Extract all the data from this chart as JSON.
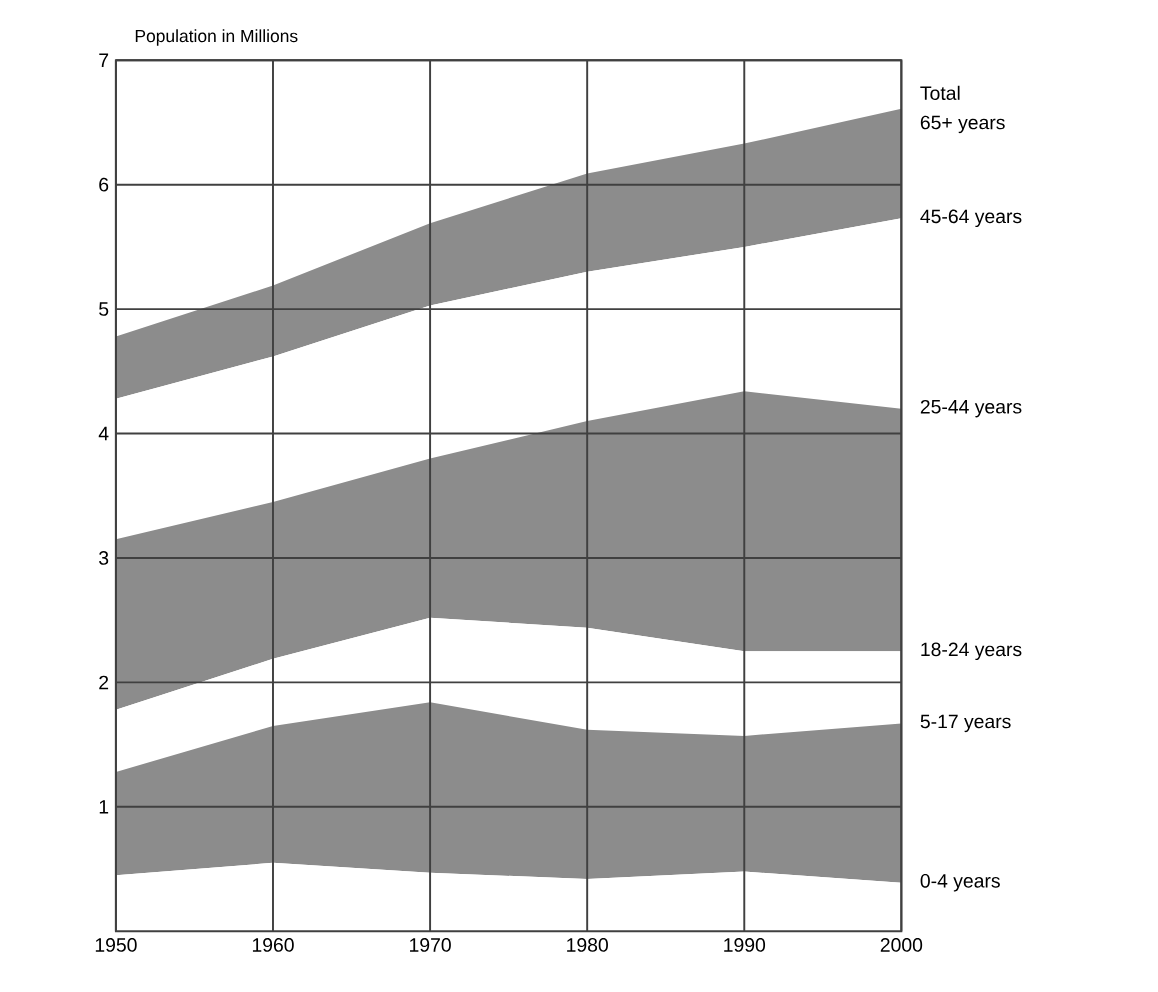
{
  "chart_data": {
    "type": "area",
    "stacked": true,
    "ylabel": "Population in Millions",
    "x": [
      1950,
      1960,
      1970,
      1980,
      1990,
      2000
    ],
    "xlim": [
      1950,
      2000
    ],
    "xticks": [
      1950,
      1960,
      1970,
      1980,
      1990,
      2000
    ],
    "ylim": [
      0,
      7
    ],
    "yticks": [
      1,
      2,
      3,
      4,
      5,
      6,
      7
    ],
    "grid": true,
    "series": [
      {
        "name": "0-4 years",
        "values": [
          0.45,
          0.55,
          0.47,
          0.42,
          0.48,
          0.39
        ]
      },
      {
        "name": "5-17 years",
        "color": "#8c8c8c",
        "values": [
          0.83,
          1.1,
          1.37,
          1.2,
          1.09,
          1.28
        ]
      },
      {
        "name": "18-24 years",
        "values": [
          0.5,
          0.54,
          0.68,
          0.82,
          0.68,
          0.58
        ]
      },
      {
        "name": "25-44 years",
        "color": "#8c8c8c",
        "values": [
          1.37,
          1.26,
          1.28,
          1.66,
          2.09,
          1.95
        ]
      },
      {
        "name": "45-64 years",
        "values": [
          1.13,
          1.17,
          1.23,
          1.2,
          1.16,
          1.53
        ]
      },
      {
        "name": "65+ years",
        "color": "#8c8c8c",
        "values": [
          0.5,
          0.57,
          0.66,
          0.79,
          0.83,
          0.88
        ]
      }
    ],
    "annotations": [
      "Total"
    ]
  }
}
